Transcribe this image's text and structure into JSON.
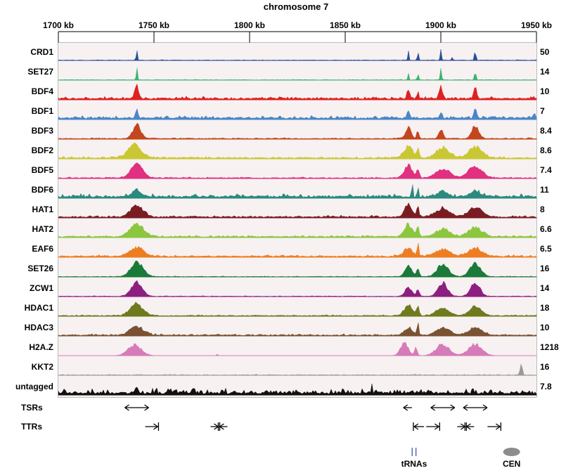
{
  "chart_data": {
    "type": "area",
    "title": "chromosome 7",
    "x_unit": "kb",
    "xlim": [
      1700,
      1950
    ],
    "x_ticks": [
      {
        "value": 1700,
        "label": "1700 kb"
      },
      {
        "value": 1750,
        "label": "1750 kb"
      },
      {
        "value": 1800,
        "label": "1800 kb"
      },
      {
        "value": 1850,
        "label": "1850 kb"
      },
      {
        "value": 1900,
        "label": "1900 kb"
      },
      {
        "value": 1950,
        "label": "1950 kb"
      }
    ],
    "tracks": [
      {
        "name": "CRD1",
        "scale": "50",
        "color": "#2b4f9b",
        "baseline": 0.02,
        "noise": 0.02,
        "peaks": [
          {
            "x": 1741,
            "h": 0.9,
            "w": 0.4
          },
          {
            "x": 1883,
            "h": 0.7,
            "w": 0.4
          },
          {
            "x": 1888,
            "h": 0.6,
            "w": 0.4
          },
          {
            "x": 1900,
            "h": 0.6,
            "w": 0.5
          },
          {
            "x": 1906,
            "h": 0.25,
            "w": 0.4
          },
          {
            "x": 1918,
            "h": 0.9,
            "w": 0.4
          }
        ]
      },
      {
        "name": "SET27",
        "scale": "14",
        "color": "#3cb371",
        "baseline": 0.02,
        "noise": 0.02,
        "peaks": [
          {
            "x": 1741,
            "h": 0.9,
            "w": 0.4
          },
          {
            "x": 1883,
            "h": 0.55,
            "w": 0.4
          },
          {
            "x": 1888,
            "h": 0.5,
            "w": 0.4
          },
          {
            "x": 1900,
            "h": 0.8,
            "w": 0.5
          },
          {
            "x": 1918,
            "h": 0.95,
            "w": 0.4
          }
        ]
      },
      {
        "name": "BDF4",
        "scale": "10",
        "color": "#dd2222",
        "baseline": 0.08,
        "noise": 0.12,
        "peaks": [
          {
            "x": 1741,
            "h": 0.85,
            "w": 1.5
          },
          {
            "x": 1883,
            "h": 0.7,
            "w": 1
          },
          {
            "x": 1888,
            "h": 0.5,
            "w": 0.6
          },
          {
            "x": 1900,
            "h": 0.8,
            "w": 1.2
          },
          {
            "x": 1918,
            "h": 0.95,
            "w": 1
          }
        ]
      },
      {
        "name": "BDF1",
        "scale": "7",
        "color": "#4a86c8",
        "baseline": 0.1,
        "noise": 0.12,
        "peaks": [
          {
            "x": 1741,
            "h": 0.55,
            "w": 1
          },
          {
            "x": 1883,
            "h": 0.4,
            "w": 1
          },
          {
            "x": 1900,
            "h": 0.35,
            "w": 1
          },
          {
            "x": 1918,
            "h": 0.7,
            "w": 1
          },
          {
            "x": 1949,
            "h": 0.5,
            "w": 0.5
          }
        ]
      },
      {
        "name": "BDF3",
        "scale": "8.4",
        "color": "#c2461e",
        "baseline": 0.04,
        "noise": 0.05,
        "peaks": [
          {
            "x": 1741,
            "h": 0.9,
            "w": 3
          },
          {
            "x": 1883,
            "h": 0.7,
            "w": 2
          },
          {
            "x": 1888,
            "h": 0.55,
            "w": 0.8
          },
          {
            "x": 1900,
            "h": 0.6,
            "w": 1.5
          },
          {
            "x": 1918,
            "h": 0.85,
            "w": 2.5
          }
        ]
      },
      {
        "name": "BDF2",
        "scale": "8.6",
        "color": "#c9c832",
        "baseline": 0.06,
        "noise": 0.08,
        "peaks": [
          {
            "x": 1740,
            "h": 0.85,
            "w": 5
          },
          {
            "x": 1883,
            "h": 0.8,
            "w": 3
          },
          {
            "x": 1888,
            "h": 0.55,
            "w": 1
          },
          {
            "x": 1901,
            "h": 0.65,
            "w": 5
          },
          {
            "x": 1918,
            "h": 0.75,
            "w": 5
          }
        ]
      },
      {
        "name": "BDF5",
        "scale": "7.4",
        "color": "#e0307f",
        "baseline": 0.04,
        "noise": 0.05,
        "peaks": [
          {
            "x": 1741,
            "h": 0.9,
            "w": 4.5
          },
          {
            "x": 1883,
            "h": 0.8,
            "w": 3
          },
          {
            "x": 1888,
            "h": 0.55,
            "w": 1
          },
          {
            "x": 1901,
            "h": 0.6,
            "w": 5
          },
          {
            "x": 1918,
            "h": 0.8,
            "w": 5
          }
        ]
      },
      {
        "name": "BDF6",
        "scale": "11",
        "color": "#2a8a80",
        "baseline": 0.1,
        "noise": 0.16,
        "peaks": [
          {
            "x": 1741,
            "h": 0.45,
            "w": 3
          },
          {
            "x": 1885,
            "h": 0.95,
            "w": 0.4
          },
          {
            "x": 1888,
            "h": 0.85,
            "w": 0.4
          },
          {
            "x": 1901,
            "h": 0.35,
            "w": 4
          },
          {
            "x": 1918,
            "h": 0.35,
            "w": 4
          }
        ]
      },
      {
        "name": "HAT1",
        "scale": "8",
        "color": "#7a1d22",
        "baseline": 0.06,
        "noise": 0.1,
        "peaks": [
          {
            "x": 1741,
            "h": 0.8,
            "w": 4.5
          },
          {
            "x": 1883,
            "h": 0.75,
            "w": 3
          },
          {
            "x": 1888,
            "h": 0.7,
            "w": 0.8
          },
          {
            "x": 1901,
            "h": 0.55,
            "w": 5
          },
          {
            "x": 1918,
            "h": 0.65,
            "w": 5
          }
        ]
      },
      {
        "name": "HAT2",
        "scale": "6.6",
        "color": "#8cc63f",
        "baseline": 0.06,
        "noise": 0.08,
        "peaks": [
          {
            "x": 1741,
            "h": 0.85,
            "w": 5
          },
          {
            "x": 1883,
            "h": 0.8,
            "w": 3
          },
          {
            "x": 1888,
            "h": 0.6,
            "w": 1
          },
          {
            "x": 1901,
            "h": 0.5,
            "w": 5
          },
          {
            "x": 1918,
            "h": 0.6,
            "w": 5
          }
        ]
      },
      {
        "name": "EAF6",
        "scale": "6.5",
        "color": "#ee7d22",
        "baseline": 0.06,
        "noise": 0.08,
        "peaks": [
          {
            "x": 1741,
            "h": 0.6,
            "w": 5
          },
          {
            "x": 1883,
            "h": 0.55,
            "w": 3
          },
          {
            "x": 1888,
            "h": 0.9,
            "w": 0.6
          },
          {
            "x": 1901,
            "h": 0.5,
            "w": 5
          },
          {
            "x": 1918,
            "h": 0.55,
            "w": 5
          }
        ]
      },
      {
        "name": "SET26",
        "scale": "16",
        "color": "#1a7a3a",
        "baseline": 0.02,
        "noise": 0.03,
        "peaks": [
          {
            "x": 1741,
            "h": 0.95,
            "w": 4.5
          },
          {
            "x": 1883,
            "h": 0.75,
            "w": 2.5
          },
          {
            "x": 1888,
            "h": 0.5,
            "w": 1
          },
          {
            "x": 1901,
            "h": 0.85,
            "w": 4
          },
          {
            "x": 1918,
            "h": 0.85,
            "w": 4
          }
        ]
      },
      {
        "name": "ZCW1",
        "scale": "14",
        "color": "#8d1f80",
        "baseline": 0.02,
        "noise": 0.03,
        "peaks": [
          {
            "x": 1741,
            "h": 0.95,
            "w": 4
          },
          {
            "x": 1883,
            "h": 0.6,
            "w": 2.5
          },
          {
            "x": 1888,
            "h": 0.5,
            "w": 1
          },
          {
            "x": 1901,
            "h": 0.9,
            "w": 3.5
          },
          {
            "x": 1918,
            "h": 0.85,
            "w": 3.5
          }
        ]
      },
      {
        "name": "HDAC1",
        "scale": "18",
        "color": "#6e7a1e",
        "baseline": 0.04,
        "noise": 0.05,
        "peaks": [
          {
            "x": 1741,
            "h": 0.8,
            "w": 4.5
          },
          {
            "x": 1883,
            "h": 0.7,
            "w": 3
          },
          {
            "x": 1888,
            "h": 0.55,
            "w": 1
          },
          {
            "x": 1901,
            "h": 0.5,
            "w": 4.5
          },
          {
            "x": 1918,
            "h": 0.6,
            "w": 4.5
          }
        ]
      },
      {
        "name": "HDAC3",
        "scale": "10",
        "color": "#7a5232",
        "baseline": 0.05,
        "noise": 0.08,
        "peaks": [
          {
            "x": 1741,
            "h": 0.6,
            "w": 5
          },
          {
            "x": 1883,
            "h": 0.5,
            "w": 3
          },
          {
            "x": 1888,
            "h": 0.9,
            "w": 0.5
          },
          {
            "x": 1901,
            "h": 0.45,
            "w": 5
          },
          {
            "x": 1918,
            "h": 0.5,
            "w": 5
          }
        ]
      },
      {
        "name": "H2A.Z",
        "scale": "1218",
        "color": "#d77ab8",
        "baseline": 0.0,
        "noise": 0.01,
        "peaks": [
          {
            "x": 1740,
            "h": 0.7,
            "w": 5
          },
          {
            "x": 1881,
            "h": 0.8,
            "w": 3
          },
          {
            "x": 1887,
            "h": 0.55,
            "w": 1
          },
          {
            "x": 1901,
            "h": 0.75,
            "w": 5
          },
          {
            "x": 1918,
            "h": 0.75,
            "w": 5
          },
          {
            "x": 1783,
            "h": 0.12,
            "w": 0.5
          }
        ]
      },
      {
        "name": "KKT2",
        "scale": "16",
        "color": "#999999",
        "baseline": 0.02,
        "noise": 0.04,
        "peaks": [
          {
            "x": 1942,
            "h": 0.85,
            "w": 0.8
          }
        ]
      },
      {
        "name": "untagged",
        "scale": "7.8",
        "color": "#111111",
        "baseline": 0.12,
        "noise": 0.3,
        "peaks": [
          {
            "x": 1741,
            "h": 0.5,
            "w": 0.3
          },
          {
            "x": 1864,
            "h": 0.6,
            "w": 0.3
          },
          {
            "x": 1885,
            "h": 0.4,
            "w": 0.3
          }
        ]
      }
    ],
    "annotations": {
      "TSRs": [
        {
          "type": "divergent",
          "x": 1741
        },
        {
          "type": "left",
          "x": 1883
        },
        {
          "type": "divergent",
          "x": 1901
        },
        {
          "type": "divergent",
          "x": 1918
        }
      ],
      "TTRs": [
        {
          "type": "right-bar",
          "x": 1752
        },
        {
          "type": "convergent",
          "x": 1784
        },
        {
          "type": "left-bar",
          "x": 1886
        },
        {
          "type": "right-bar",
          "x": 1899
        },
        {
          "type": "convergent",
          "x": 1913
        },
        {
          "type": "right-bar",
          "x": 1931
        }
      ],
      "tRNAs": {
        "label": "tRNAs",
        "positions": [
          1885,
          1887
        ],
        "color": "#2b4f9b"
      },
      "CEN": {
        "label": "CEN",
        "x": 1937,
        "color": "#8c8c8c"
      }
    }
  }
}
